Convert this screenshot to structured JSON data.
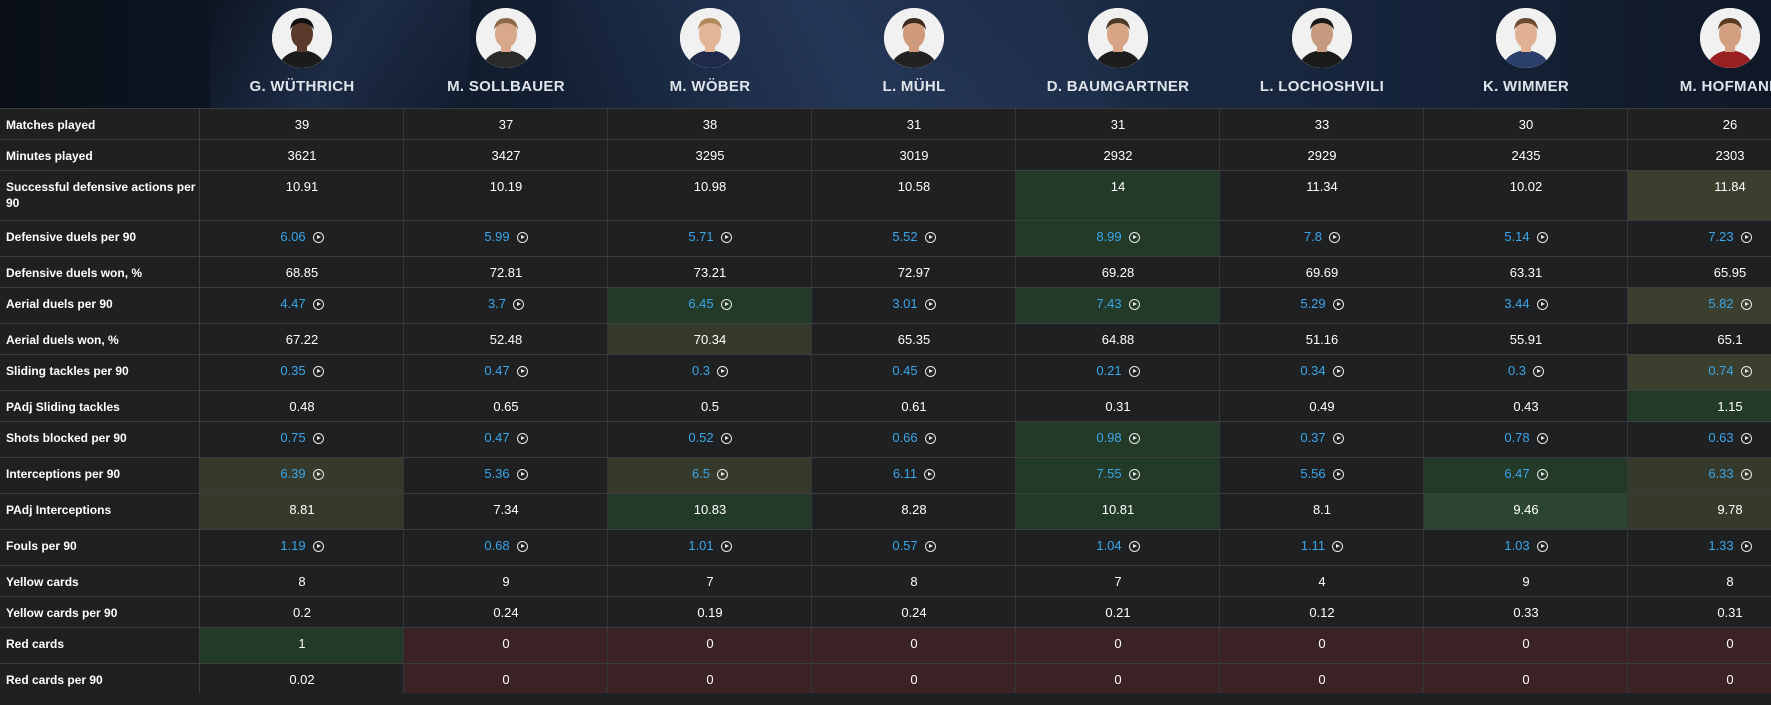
{
  "players": [
    {
      "name": "G. WÜTHRICH",
      "avatar": "player-avatar",
      "skin": "#5a3b2b",
      "hair": "#111111",
      "shirt": "#1b1b1b"
    },
    {
      "name": "M. SOLLBAUER",
      "avatar": "player-avatar",
      "skin": "#d9a88a",
      "hair": "#8a6a4a",
      "shirt": "#2a2a2a"
    },
    {
      "name": "M. WÖBER",
      "avatar": "player-avatar",
      "skin": "#e2b597",
      "hair": "#b18a5a",
      "shirt": "#1f2a4a"
    },
    {
      "name": "L. MÜHL",
      "avatar": "player-avatar",
      "skin": "#cf9b7c",
      "hair": "#3a2a1f",
      "shirt": "#222222"
    },
    {
      "name": "D. BAUMGARTNER",
      "avatar": "player-avatar",
      "skin": "#d7a585",
      "hair": "#4a3a2a",
      "shirt": "#1d1d1d"
    },
    {
      "name": "L. LOCHOSHVILI",
      "avatar": "player-avatar",
      "skin": "#c69a7e",
      "hair": "#1a1a1a",
      "shirt": "#1a1a1a"
    },
    {
      "name": "K. WIMMER",
      "avatar": "player-avatar",
      "skin": "#e1b094",
      "hair": "#6a4a30",
      "shirt": "#2a3f6a"
    },
    {
      "name": "M. HOFMANN",
      "avatar": "player-avatar",
      "skin": "#d2a080",
      "hair": "#5a3a22",
      "shirt": "#9a1f22"
    }
  ],
  "rows": [
    {
      "label": "Matches played",
      "values": [
        "39",
        "37",
        "38",
        "31",
        "31",
        "33",
        "30",
        "26"
      ],
      "link": false
    },
    {
      "label": "Minutes played",
      "values": [
        "3621",
        "3427",
        "3295",
        "3019",
        "2932",
        "2929",
        "2435",
        "2303"
      ],
      "link": false
    },
    {
      "label": "Successful defensive actions per 90",
      "values": [
        "10.91",
        "10.19",
        "10.98",
        "10.58",
        "14",
        "11.34",
        "10.02",
        "11.84"
      ],
      "link": false
    },
    {
      "label": "Defensive duels per 90",
      "values": [
        "6.06",
        "5.99",
        "5.71",
        "5.52",
        "8.99",
        "7.8",
        "5.14",
        "7.23"
      ],
      "link": true
    },
    {
      "label": "Defensive duels won, %",
      "values": [
        "68.85",
        "72.81",
        "73.21",
        "72.97",
        "69.28",
        "69.69",
        "63.31",
        "65.95"
      ],
      "link": false
    },
    {
      "label": "Aerial duels per 90",
      "values": [
        "4.47",
        "3.7",
        "6.45",
        "3.01",
        "7.43",
        "5.29",
        "3.44",
        "5.82"
      ],
      "link": true
    },
    {
      "label": "Aerial duels won, %",
      "values": [
        "67.22",
        "52.48",
        "70.34",
        "65.35",
        "64.88",
        "51.16",
        "55.91",
        "65.1"
      ],
      "link": false
    },
    {
      "label": "Sliding tackles per 90",
      "values": [
        "0.35",
        "0.47",
        "0.3",
        "0.45",
        "0.21",
        "0.34",
        "0.3",
        "0.74"
      ],
      "link": true
    },
    {
      "label": "PAdj Sliding tackles",
      "values": [
        "0.48",
        "0.65",
        "0.5",
        "0.61",
        "0.31",
        "0.49",
        "0.43",
        "1.15"
      ],
      "link": false
    },
    {
      "label": "Shots blocked per 90",
      "values": [
        "0.75",
        "0.47",
        "0.52",
        "0.66",
        "0.98",
        "0.37",
        "0.78",
        "0.63"
      ],
      "link": true
    },
    {
      "label": "Interceptions per 90",
      "values": [
        "6.39",
        "5.36",
        "6.5",
        "6.11",
        "7.55",
        "5.56",
        "6.47",
        "6.33"
      ],
      "link": true
    },
    {
      "label": "PAdj Interceptions",
      "values": [
        "8.81",
        "7.34",
        "10.83",
        "8.28",
        "10.81",
        "8.1",
        "9.46",
        "9.78"
      ],
      "link": false
    },
    {
      "label": "Fouls per 90",
      "values": [
        "1.19",
        "0.68",
        "1.01",
        "0.57",
        "1.04",
        "1.11",
        "1.03",
        "1.33"
      ],
      "link": true
    },
    {
      "label": "Yellow cards",
      "values": [
        "8",
        "9",
        "7",
        "8",
        "7",
        "4",
        "9",
        "8"
      ],
      "link": false
    },
    {
      "label": "Yellow cards per 90",
      "values": [
        "0.2",
        "0.24",
        "0.19",
        "0.24",
        "0.21",
        "0.12",
        "0.33",
        "0.31"
      ],
      "link": false
    },
    {
      "label": "Red cards",
      "values": [
        "1",
        "0",
        "0",
        "0",
        "0",
        "0",
        "0",
        "0"
      ],
      "link": false
    },
    {
      "label": "Red cards per 90",
      "values": [
        "0.02",
        "0",
        "0",
        "0",
        "0",
        "0",
        "0",
        "0"
      ],
      "link": false
    }
  ],
  "highlights": [
    [
      "",
      "",
      "",
      "",
      "",
      "",
      "",
      ""
    ],
    [
      "",
      "",
      "",
      "",
      "",
      "",
      "",
      ""
    ],
    [
      "",
      "",
      "",
      "",
      "g1",
      "",
      "",
      "o2"
    ],
    [
      "",
      "",
      "",
      "",
      "g1",
      "",
      "",
      ""
    ],
    [
      "",
      "",
      "",
      "",
      "",
      "",
      "",
      ""
    ],
    [
      "",
      "",
      "g1",
      "",
      "g1",
      "",
      "",
      "o2"
    ],
    [
      "",
      "",
      "o1",
      "",
      "",
      "",
      "",
      ""
    ],
    [
      "",
      "",
      "",
      "",
      "",
      "",
      "",
      "o2"
    ],
    [
      "",
      "",
      "",
      "",
      "",
      "",
      "",
      "g1"
    ],
    [
      "",
      "",
      "",
      "",
      "g1",
      "",
      "",
      ""
    ],
    [
      "o1",
      "",
      "o1",
      "",
      "g1",
      "",
      "g1",
      "o1"
    ],
    [
      "o1",
      "",
      "g1",
      "",
      "g1",
      "",
      "g2",
      "o1"
    ],
    [
      "",
      "",
      "",
      "",
      "",
      "",
      "",
      ""
    ],
    [
      "",
      "",
      "",
      "",
      "",
      "",
      "",
      ""
    ],
    [
      "",
      "",
      "",
      "",
      "",
      "",
      "",
      ""
    ],
    [
      "g1",
      "r1",
      "r1",
      "r1",
      "r1",
      "r1",
      "r1",
      "r1"
    ],
    [
      "",
      "r1",
      "r1",
      "r1",
      "r1",
      "r1",
      "r1",
      "r1"
    ]
  ],
  "icons": {
    "play": "play-circle-icon"
  }
}
